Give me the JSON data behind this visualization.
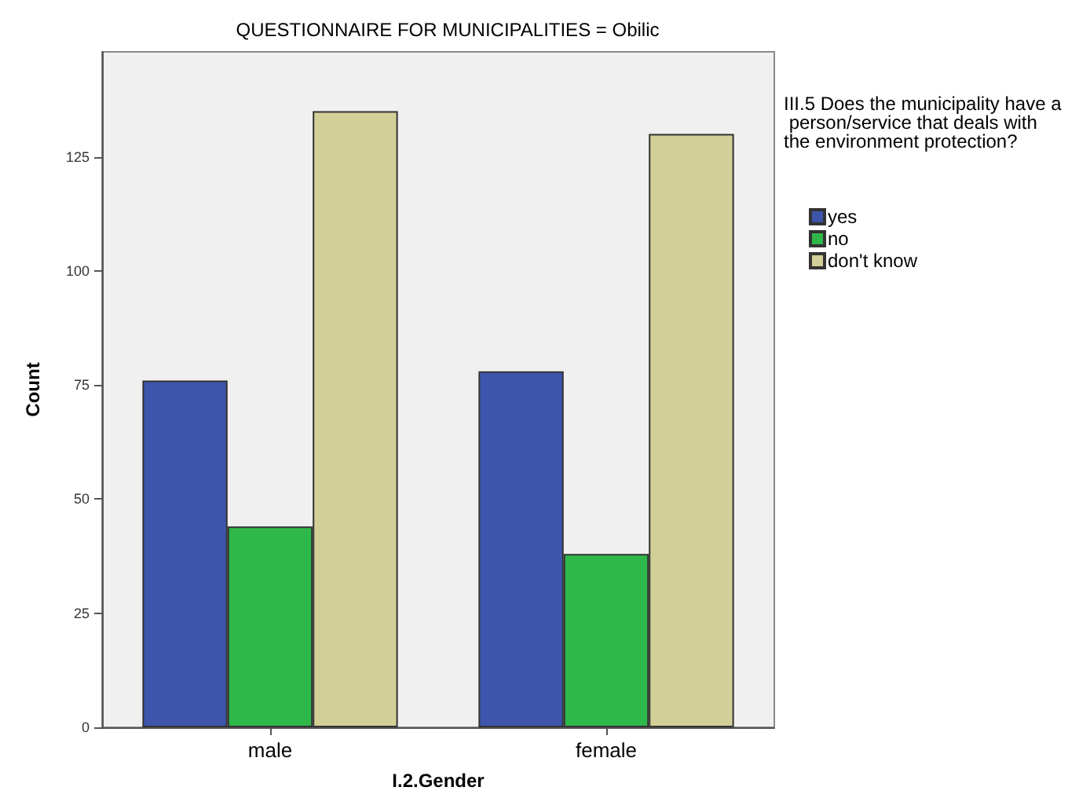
{
  "chart_data": {
    "type": "bar",
    "title": "QUESTIONNAIRE FOR MUNICIPALITIES = Obilic",
    "xlabel": "I.2.Gender",
    "ylabel": "Count",
    "legend_title": "III.5 Does the municipality have a person/service that deals with the environment protection?",
    "categories": [
      "male",
      "female"
    ],
    "series": [
      {
        "name": "yes",
        "color": "#3d55ab",
        "values": [
          76,
          78
        ]
      },
      {
        "name": "no",
        "color": "#2fb84a",
        "values": [
          44,
          38
        ]
      },
      {
        "name": "don't know",
        "color": "#d3cf98",
        "values": [
          135,
          130
        ]
      }
    ],
    "ylim": [
      0,
      148
    ],
    "yticks": [
      0,
      25,
      50,
      75,
      100,
      125
    ],
    "grid": false,
    "legend": "right"
  }
}
